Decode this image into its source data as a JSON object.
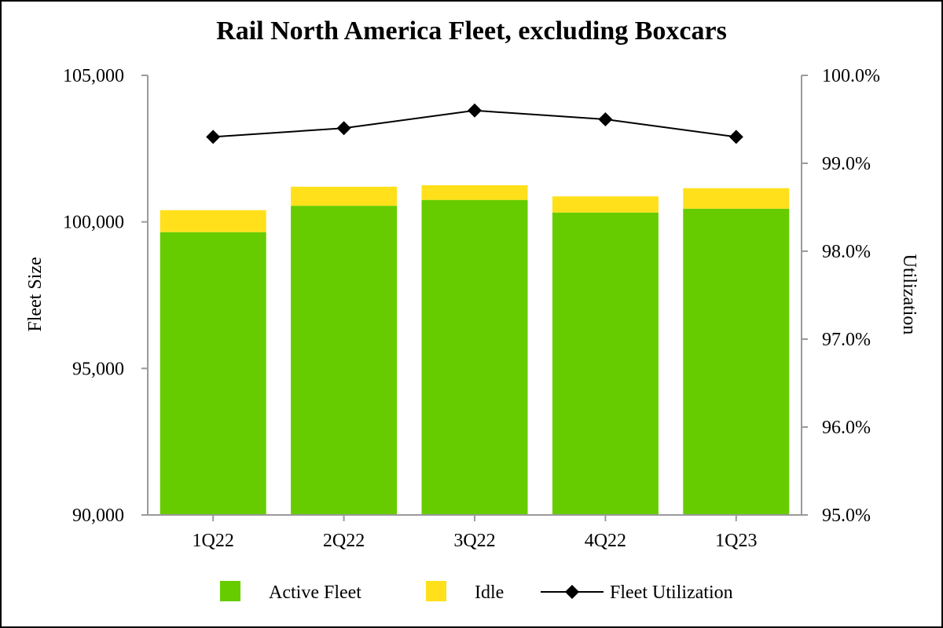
{
  "chart_data": {
    "type": "bar",
    "title": "Rail North America Fleet, excluding Boxcars",
    "categories": [
      "1Q22",
      "2Q22",
      "3Q22",
      "4Q22",
      "1Q23"
    ],
    "series": [
      {
        "name": "Active Fleet",
        "kind": "stacked-bar",
        "axis": "left",
        "color": "#66CC00",
        "values": [
          99650,
          100550,
          100750,
          100320,
          100450
        ]
      },
      {
        "name": "Idle",
        "kind": "stacked-bar",
        "axis": "left",
        "color": "#FFE01A",
        "values": [
          750,
          650,
          500,
          550,
          700
        ]
      },
      {
        "name": "Fleet Utilization",
        "kind": "line",
        "axis": "right",
        "color": "#000000",
        "values": [
          99.3,
          99.4,
          99.6,
          99.5,
          99.3
        ]
      }
    ],
    "ylabel": "Fleet Size",
    "ylim": [
      90000,
      105000
    ],
    "yticks": [
      90000,
      95000,
      100000,
      105000
    ],
    "ytick_labels": [
      "90,000",
      "95,000",
      "100,000",
      "105,000"
    ],
    "y2label": "Utilization",
    "y2lim": [
      95.0,
      100.0
    ],
    "y2ticks": [
      95.0,
      96.0,
      97.0,
      98.0,
      99.0,
      100.0
    ],
    "y2tick_labels": [
      "95.0%",
      "96.0%",
      "97.0%",
      "98.0%",
      "99.0%",
      "100.0%"
    ],
    "grid": false,
    "legend_position": "bottom"
  }
}
